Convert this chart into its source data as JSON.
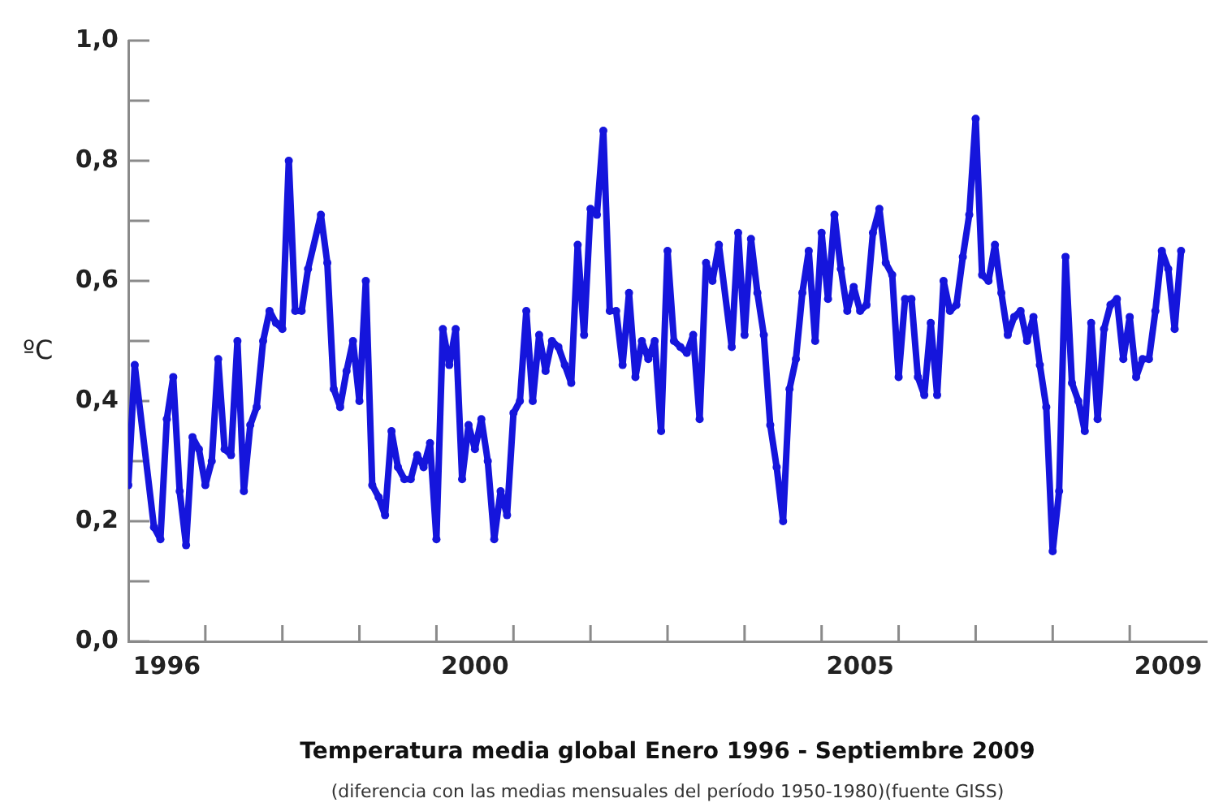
{
  "chart_data": {
    "type": "line",
    "title": "Temperatura media global Enero 1996 - Septiembre 2009",
    "subtitle": "(diferencia con las medias mensuales del período 1950-1980)(fuente GISS)",
    "ylabel": "ºC",
    "x": [
      "1996-01",
      "1996-02",
      "1996-05",
      "1996-06",
      "1996-07",
      "1996-08",
      "1996-09",
      "1996-10",
      "1996-11",
      "1996-12",
      "1997-01",
      "1997-02",
      "1997-03",
      "1997-04",
      "1997-05",
      "1997-06",
      "1997-07",
      "1997-08",
      "1997-09",
      "1997-10",
      "1997-11",
      "1997-12",
      "1998-01",
      "1998-02",
      "1998-03",
      "1998-04",
      "1998-05",
      "1998-07",
      "1998-08",
      "1998-09",
      "1998-10",
      "1998-11",
      "1998-12",
      "1999-01",
      "1999-02",
      "1999-03",
      "1999-04",
      "1999-05",
      "1999-06",
      "1999-07",
      "1999-08",
      "1999-09",
      "1999-10",
      "1999-11",
      "1999-12",
      "2000-01",
      "2000-02",
      "2000-03",
      "2000-04",
      "2000-05",
      "2000-06",
      "2000-07",
      "2000-08",
      "2000-09",
      "2000-10",
      "2000-11",
      "2000-12",
      "2001-01",
      "2001-02",
      "2001-03",
      "2001-04",
      "2001-05",
      "2001-06",
      "2001-07",
      "2001-08",
      "2001-09",
      "2001-10",
      "2001-11",
      "2001-12",
      "2002-01",
      "2002-02",
      "2002-03",
      "2002-04",
      "2002-05",
      "2002-06",
      "2002-07",
      "2002-08",
      "2002-09",
      "2002-10",
      "2002-11",
      "2002-12",
      "2003-01",
      "2003-02",
      "2003-03",
      "2003-04",
      "2003-05",
      "2003-06",
      "2003-07",
      "2003-08",
      "2003-09",
      "2003-11",
      "2003-12",
      "2004-01",
      "2004-02",
      "2004-03",
      "2004-04",
      "2004-05",
      "2004-06",
      "2004-07",
      "2004-08",
      "2004-09",
      "2004-10",
      "2004-11",
      "2004-12",
      "2005-01",
      "2005-02",
      "2005-03",
      "2005-04",
      "2005-05",
      "2005-06",
      "2005-07",
      "2005-08",
      "2005-09",
      "2005-10",
      "2005-11",
      "2005-12",
      "2006-01",
      "2006-02",
      "2006-03",
      "2006-04",
      "2006-05",
      "2006-06",
      "2006-07",
      "2006-08",
      "2006-09",
      "2006-10",
      "2006-11",
      "2006-12",
      "2007-01",
      "2007-02",
      "2007-03",
      "2007-04",
      "2007-05",
      "2007-06",
      "2007-07",
      "2007-08",
      "2007-09",
      "2007-10",
      "2007-11",
      "2007-12",
      "2008-01",
      "2008-02",
      "2008-03",
      "2008-04",
      "2008-05",
      "2008-06",
      "2008-07",
      "2008-08",
      "2008-09",
      "2008-10",
      "2008-11",
      "2008-12",
      "2009-01",
      "2009-02",
      "2009-03",
      "2009-04",
      "2009-05",
      "2009-06",
      "2009-07",
      "2009-08",
      "2009-09"
    ],
    "values": [
      0.26,
      0.46,
      0.19,
      0.17,
      0.37,
      0.44,
      0.25,
      0.16,
      0.34,
      0.32,
      0.26,
      0.3,
      0.47,
      0.32,
      0.31,
      0.5,
      0.25,
      0.36,
      0.39,
      0.5,
      0.55,
      0.53,
      0.52,
      0.8,
      0.55,
      0.55,
      0.62,
      0.71,
      0.63,
      0.42,
      0.39,
      0.45,
      0.5,
      0.4,
      0.6,
      0.26,
      0.24,
      0.21,
      0.35,
      0.29,
      0.27,
      0.27,
      0.31,
      0.29,
      0.33,
      0.17,
      0.52,
      0.46,
      0.52,
      0.27,
      0.36,
      0.32,
      0.37,
      0.3,
      0.17,
      0.25,
      0.21,
      0.38,
      0.4,
      0.55,
      0.4,
      0.51,
      0.45,
      0.5,
      0.49,
      0.46,
      0.43,
      0.66,
      0.51,
      0.72,
      0.71,
      0.85,
      0.55,
      0.55,
      0.46,
      0.58,
      0.44,
      0.5,
      0.47,
      0.5,
      0.35,
      0.65,
      0.5,
      0.49,
      0.48,
      0.51,
      0.37,
      0.63,
      0.6,
      0.66,
      0.49,
      0.68,
      0.51,
      0.67,
      0.58,
      0.51,
      0.36,
      0.29,
      0.2,
      0.42,
      0.47,
      0.58,
      0.65,
      0.5,
      0.68,
      0.57,
      0.71,
      0.62,
      0.55,
      0.59,
      0.55,
      0.56,
      0.68,
      0.72,
      0.63,
      0.61,
      0.44,
      0.57,
      0.57,
      0.44,
      0.41,
      0.53,
      0.41,
      0.6,
      0.55,
      0.56,
      0.64,
      0.71,
      0.87,
      0.61,
      0.6,
      0.66,
      0.58,
      0.51,
      0.54,
      0.55,
      0.5,
      0.54,
      0.46,
      0.39,
      0.15,
      0.25,
      0.64,
      0.43,
      0.4,
      0.35,
      0.53,
      0.37,
      0.52,
      0.56,
      0.57,
      0.47,
      0.54,
      0.44,
      0.47,
      0.47,
      0.55,
      0.65,
      0.62,
      0.52,
      0.65
    ],
    "color": "#1515dc",
    "marker": "circle",
    "line_style": "solid",
    "xlim": [
      "1996-01",
      "2010-01"
    ],
    "xticks": [
      {
        "value": "1996-07",
        "label": "1996"
      },
      {
        "value": "1997-01",
        "label": null
      },
      {
        "value": "1998-01",
        "label": null
      },
      {
        "value": "1999-01",
        "label": null
      },
      {
        "value": "2000-01",
        "label": null
      },
      {
        "value": "2000-07",
        "label": "2000"
      },
      {
        "value": "2001-01",
        "label": null
      },
      {
        "value": "2002-01",
        "label": null
      },
      {
        "value": "2003-01",
        "label": null
      },
      {
        "value": "2004-01",
        "label": null
      },
      {
        "value": "2005-01",
        "label": null
      },
      {
        "value": "2005-07",
        "label": "2005"
      },
      {
        "value": "2006-01",
        "label": null
      },
      {
        "value": "2007-01",
        "label": null
      },
      {
        "value": "2008-01",
        "label": null
      },
      {
        "value": "2009-01",
        "label": null
      },
      {
        "value": "2009-07",
        "label": "2009"
      }
    ],
    "ylim": [
      0,
      1
    ],
    "yticks": [
      {
        "value": 0,
        "label": "0,0"
      },
      {
        "value": 0.1,
        "label": null
      },
      {
        "value": 0.2,
        "label": "0,2"
      },
      {
        "value": 0.3,
        "label": null
      },
      {
        "value": 0.4,
        "label": "0,4"
      },
      {
        "value": 0.5,
        "label": null
      },
      {
        "value": 0.6,
        "label": "0,6"
      },
      {
        "value": 0.7,
        "label": null
      },
      {
        "value": 0.8,
        "label": "0,8"
      },
      {
        "value": 0.9,
        "label": null
      },
      {
        "value": 1,
        "label": "1,0"
      }
    ]
  }
}
